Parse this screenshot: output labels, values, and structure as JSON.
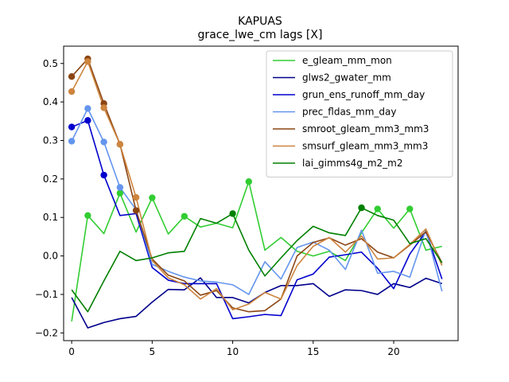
{
  "chart_data": {
    "type": "line",
    "title": "KAPUAS",
    "subtitle": "grace_lwe_cm lags [X]",
    "xlabel": "",
    "ylabel": "",
    "xlim": [
      -0.5,
      24
    ],
    "ylim": [
      -0.22,
      0.545
    ],
    "x_ticks": [
      0,
      5,
      10,
      15,
      20
    ],
    "y_ticks": [
      -0.2,
      -0.1,
      0.0,
      0.1,
      0.2,
      0.3,
      0.4,
      0.5
    ],
    "y_tick_labels": [
      "−0.2",
      "−0.1",
      "0.0",
      "0.1",
      "0.2",
      "0.3",
      "0.4",
      "0.5"
    ],
    "legend_position": "upper right",
    "grid": false,
    "x": [
      0,
      1,
      2,
      3,
      4,
      5,
      6,
      7,
      8,
      9,
      10,
      11,
      12,
      13,
      14,
      15,
      16,
      17,
      18,
      19,
      20,
      21,
      22,
      23
    ],
    "series": [
      {
        "name": "e_gleam_mm_mon",
        "color": "#32CD32",
        "values": [
          -0.17,
          0.105,
          0.058,
          0.163,
          0.062,
          0.151,
          0.057,
          0.103,
          0.075,
          0.085,
          0.073,
          0.193,
          0.015,
          0.048,
          0.012,
          0.0,
          0.012,
          -0.012,
          0.06,
          0.122,
          0.072,
          0.122,
          0.015,
          0.025
        ],
        "markers": [
          1,
          3,
          5,
          7,
          11,
          19,
          21
        ]
      },
      {
        "name": "glws2_gwater_mm",
        "color": "#00008B",
        "values": [
          -0.108,
          -0.187,
          -0.173,
          -0.163,
          -0.157,
          -0.12,
          -0.087,
          -0.088,
          -0.057,
          -0.108,
          -0.108,
          -0.122,
          -0.095,
          -0.077,
          -0.077,
          -0.072,
          -0.105,
          -0.088,
          -0.09,
          -0.1,
          -0.072,
          -0.082,
          -0.058,
          -0.072
        ],
        "markers": []
      },
      {
        "name": "grun_ens_runoff_mm_day",
        "color": "#0000CD",
        "values": [
          0.335,
          0.352,
          0.21,
          0.105,
          0.11,
          -0.03,
          -0.063,
          -0.072,
          -0.072,
          -0.072,
          -0.163,
          -0.158,
          -0.152,
          -0.155,
          -0.062,
          -0.047,
          -0.003,
          0.003,
          0.01,
          -0.032,
          -0.085,
          0.005,
          0.063,
          -0.06
        ],
        "markers": [
          0,
          1,
          2
        ]
      },
      {
        "name": "prec_fldas_mm_day",
        "color": "#6495ED",
        "values": [
          0.298,
          0.383,
          0.296,
          0.178,
          0.12,
          -0.022,
          -0.04,
          -0.055,
          -0.065,
          -0.068,
          -0.075,
          -0.1,
          -0.015,
          -0.06,
          0.022,
          0.036,
          0.015,
          -0.035,
          0.067,
          -0.045,
          -0.04,
          -0.055,
          0.068,
          -0.092
        ],
        "markers": [
          0,
          1,
          2,
          3
        ]
      },
      {
        "name": "smroot_gleam_mm3_mm3",
        "color": "#8B4513",
        "values": [
          0.466,
          0.512,
          0.396,
          0.29,
          0.118,
          -0.008,
          -0.05,
          -0.065,
          -0.102,
          -0.09,
          -0.135,
          -0.145,
          -0.142,
          -0.112,
          0.0,
          0.035,
          0.047,
          0.028,
          0.045,
          0.01,
          -0.005,
          0.028,
          0.063,
          -0.018
        ],
        "markers": [
          0,
          1,
          2,
          3,
          4
        ]
      },
      {
        "name": "smsurf_gleam_mm3_mm3",
        "color": "#CD853F",
        "values": [
          0.427,
          0.505,
          0.385,
          0.29,
          0.152,
          -0.012,
          -0.057,
          -0.075,
          -0.112,
          -0.085,
          -0.14,
          -0.125,
          -0.095,
          -0.112,
          -0.025,
          0.025,
          0.048,
          0.01,
          0.052,
          -0.008,
          -0.005,
          0.03,
          0.07,
          -0.025
        ],
        "markers": [
          0,
          1,
          2,
          3,
          4
        ]
      },
      {
        "name": "lai_gimms4g_m2_m2",
        "color": "#008000",
        "values": [
          -0.088,
          -0.145,
          -0.065,
          0.012,
          -0.012,
          -0.005,
          0.008,
          0.012,
          0.097,
          0.085,
          0.11,
          0.015,
          -0.052,
          -0.005,
          0.04,
          0.077,
          0.06,
          0.053,
          0.125,
          0.105,
          0.093,
          0.032,
          0.045,
          -0.018
        ],
        "markers": [
          10,
          18
        ]
      }
    ]
  }
}
